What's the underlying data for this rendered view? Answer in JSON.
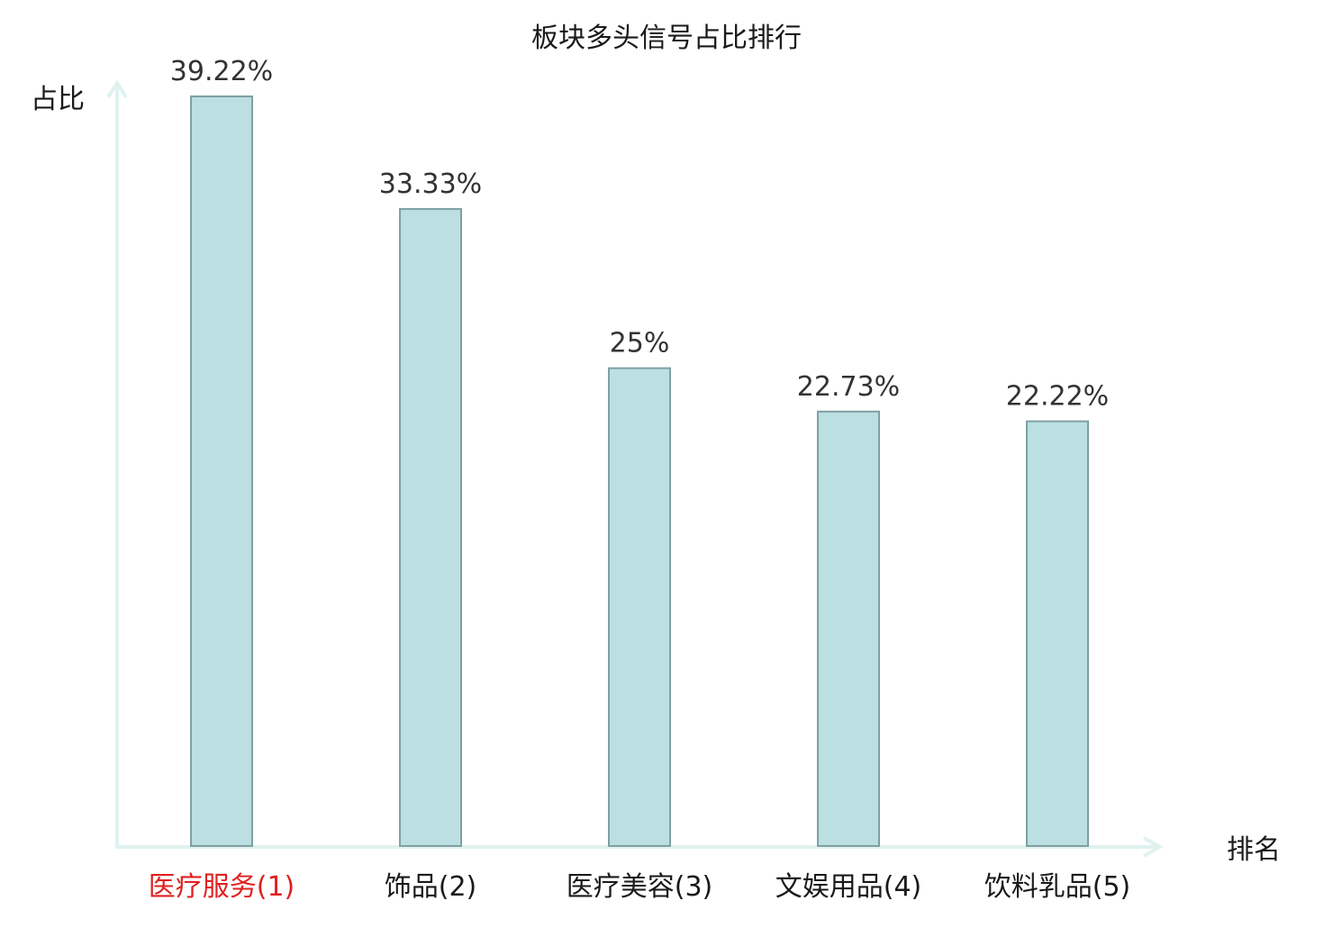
{
  "chart_data": {
    "type": "bar",
    "title": "板块多头信号占比排行",
    "xlabel": "排名",
    "ylabel": "占比",
    "categories": [
      "医疗服务(1)",
      "饰品(2)",
      "医疗美容(3)",
      "文娱用品(4)",
      "饮料乳品(5)"
    ],
    "values": [
      39.22,
      33.33,
      25,
      22.73,
      22.22
    ],
    "value_labels": [
      "39.22%",
      "33.33%",
      "25%",
      "22.73%",
      "22.22%"
    ],
    "ylim": [
      0,
      39.22
    ],
    "grid": false,
    "legend": "none",
    "colors": {
      "bar_fill": "#bce0e2",
      "bar_stroke": "#7fa0a2",
      "axis": "#e0f2ef",
      "highlight_label": "#e02020",
      "label": "#1a1a1a"
    },
    "highlight_index": 0
  }
}
